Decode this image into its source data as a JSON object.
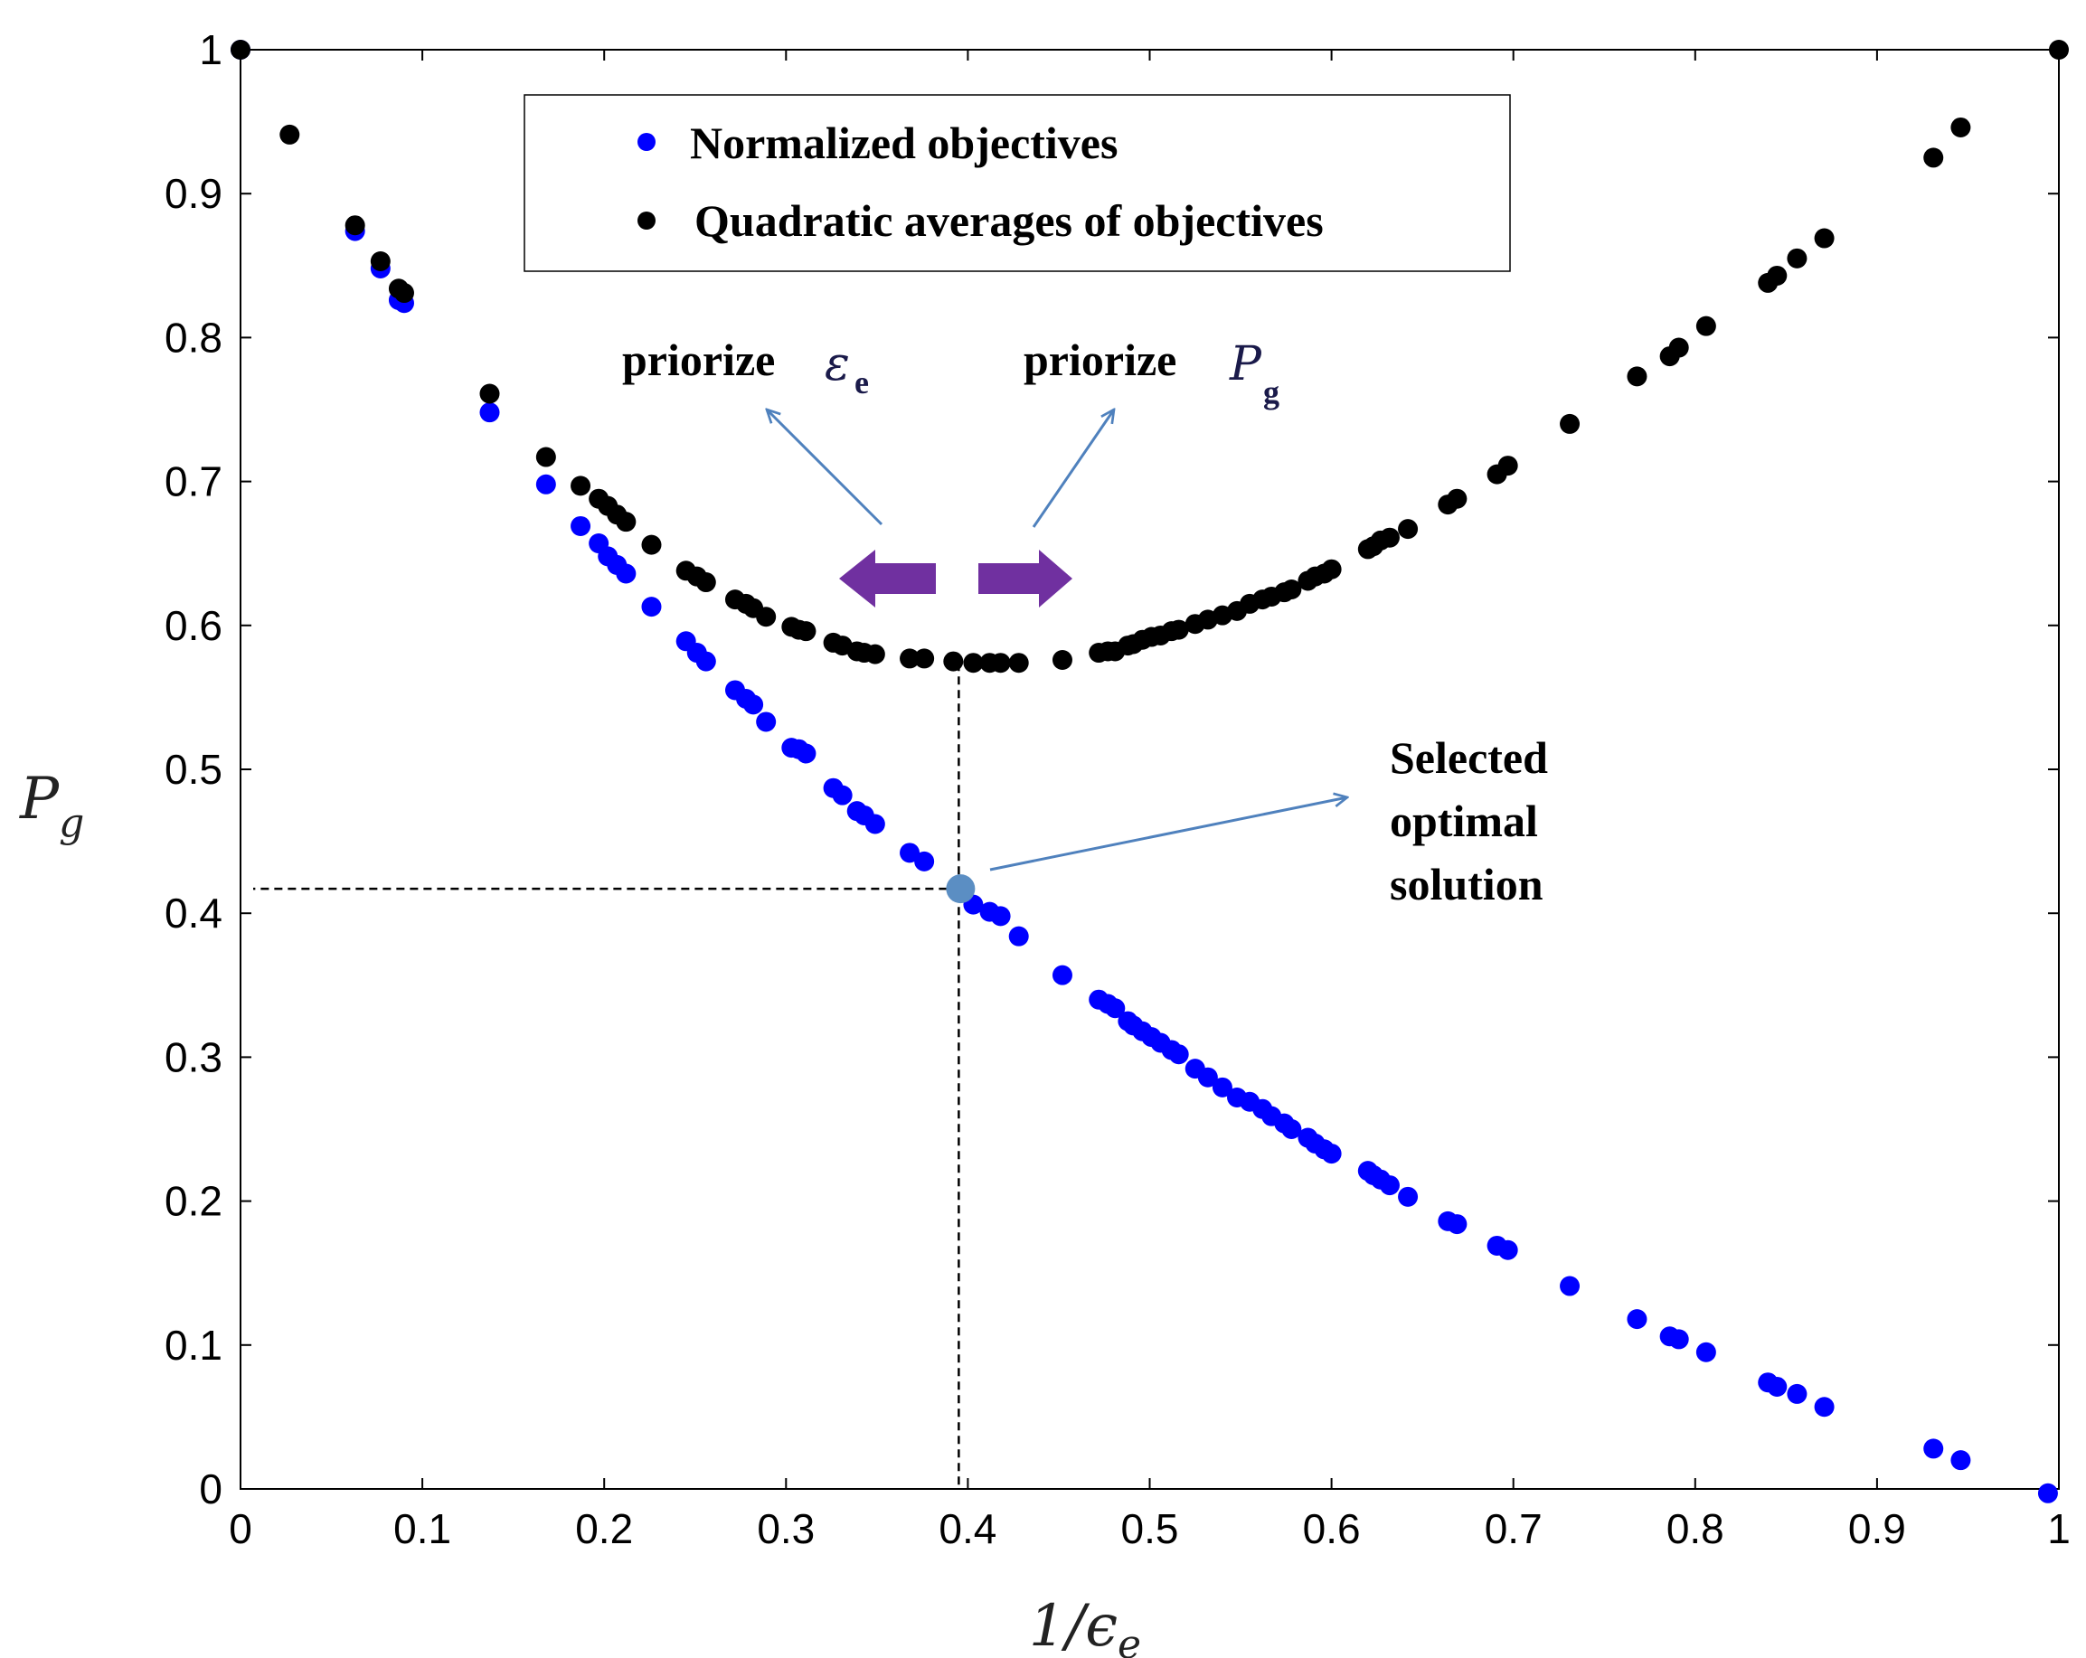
{
  "chart_data": {
    "type": "scatter",
    "title": "",
    "xlabel": "1/ϵ",
    "xlabel_sub": "e",
    "ylabel": "P",
    "ylabel_sub": "g",
    "xlim": [
      0,
      1
    ],
    "ylim": [
      0,
      1
    ],
    "x_ticks": [
      "0",
      "0.1",
      "0.2",
      "0.3",
      "0.4",
      "0.5",
      "0.6",
      "0.7",
      "0.8",
      "0.9",
      "1"
    ],
    "y_ticks": [
      "0",
      "0.1",
      "0.2",
      "0.3",
      "0.4",
      "0.5",
      "0.6",
      "0.7",
      "0.8",
      "0.9",
      "1"
    ],
    "grid": false,
    "legend_position": "top-center",
    "series": [
      {
        "name": "Normalized objectives",
        "color": "#0000ff",
        "x": [
          0,
          0.063,
          0.077,
          0.087,
          0.09,
          0.137,
          0.168,
          0.187,
          0.197,
          0.202,
          0.207,
          0.212,
          0.226,
          0.245,
          0.251,
          0.256,
          0.272,
          0.278,
          0.282,
          0.289,
          0.303,
          0.307,
          0.311,
          0.326,
          0.331,
          0.339,
          0.343,
          0.349,
          0.368,
          0.376,
          0.403,
          0.412,
          0.418,
          0.428,
          0.452,
          0.472,
          0.477,
          0.481,
          0.488,
          0.491,
          0.496,
          0.501,
          0.506,
          0.512,
          0.516,
          0.525,
          0.532,
          0.54,
          0.548,
          0.555,
          0.562,
          0.567,
          0.574,
          0.578,
          0.587,
          0.591,
          0.596,
          0.6,
          0.62,
          0.623,
          0.627,
          0.632,
          0.642,
          0.664,
          0.669,
          0.691,
          0.697,
          0.731,
          0.768,
          0.786,
          0.791,
          0.806,
          0.84,
          0.845,
          0.856,
          0.871,
          0.931,
          0.946,
          0.994
        ],
        "y": [
          1,
          0.874,
          0.848,
          0.826,
          0.824,
          0.748,
          0.698,
          0.669,
          0.657,
          0.648,
          0.642,
          0.636,
          0.613,
          0.589,
          0.581,
          0.575,
          0.555,
          0.549,
          0.545,
          0.533,
          0.515,
          0.514,
          0.511,
          0.487,
          0.482,
          0.471,
          0.468,
          0.462,
          0.442,
          0.436,
          0.406,
          0.401,
          0.398,
          0.384,
          0.357,
          0.34,
          0.337,
          0.334,
          0.325,
          0.322,
          0.318,
          0.314,
          0.31,
          0.305,
          0.302,
          0.292,
          0.286,
          0.279,
          0.272,
          0.269,
          0.264,
          0.259,
          0.254,
          0.25,
          0.244,
          0.24,
          0.236,
          0.233,
          0.221,
          0.218,
          0.215,
          0.211,
          0.203,
          0.186,
          0.184,
          0.169,
          0.166,
          0.141,
          0.118,
          0.106,
          0.104,
          0.095,
          0.074,
          0.071,
          0.066,
          0.057,
          0.028,
          0.02,
          -0.003
        ]
      },
      {
        "name": "Quadratic averages of objectives",
        "color": "#000000",
        "x": [
          0,
          0.027,
          0.063,
          0.077,
          0.087,
          0.09,
          0.137,
          0.168,
          0.187,
          0.197,
          0.202,
          0.207,
          0.212,
          0.226,
          0.245,
          0.251,
          0.256,
          0.272,
          0.278,
          0.282,
          0.289,
          0.303,
          0.307,
          0.311,
          0.326,
          0.331,
          0.339,
          0.343,
          0.349,
          0.368,
          0.376,
          0.392,
          0.403,
          0.412,
          0.418,
          0.428,
          0.452,
          0.472,
          0.477,
          0.481,
          0.488,
          0.491,
          0.496,
          0.501,
          0.506,
          0.512,
          0.516,
          0.525,
          0.532,
          0.54,
          0.548,
          0.555,
          0.562,
          0.567,
          0.574,
          0.578,
          0.587,
          0.591,
          0.596,
          0.6,
          0.62,
          0.623,
          0.627,
          0.632,
          0.642,
          0.664,
          0.669,
          0.691,
          0.697,
          0.731,
          0.768,
          0.786,
          0.791,
          0.806,
          0.84,
          0.845,
          0.856,
          0.871,
          0.931,
          0.946,
          1
        ],
        "y": [
          1,
          0.941,
          0.878,
          0.853,
          0.834,
          0.831,
          0.761,
          0.717,
          0.697,
          0.688,
          0.683,
          0.677,
          0.672,
          0.656,
          0.638,
          0.634,
          0.63,
          0.618,
          0.615,
          0.612,
          0.606,
          0.599,
          0.597,
          0.596,
          0.588,
          0.586,
          0.582,
          0.581,
          0.58,
          0.577,
          0.577,
          0.575,
          0.574,
          0.574,
          0.574,
          0.574,
          0.576,
          0.581,
          0.582,
          0.582,
          0.586,
          0.587,
          0.59,
          0.592,
          0.593,
          0.596,
          0.597,
          0.601,
          0.604,
          0.607,
          0.61,
          0.615,
          0.618,
          0.62,
          0.623,
          0.625,
          0.631,
          0.634,
          0.636,
          0.639,
          0.653,
          0.655,
          0.659,
          0.661,
          0.667,
          0.684,
          0.688,
          0.705,
          0.711,
          0.74,
          0.773,
          0.787,
          0.793,
          0.808,
          0.838,
          0.843,
          0.855,
          0.869,
          0.925,
          0.946,
          1
        ]
      }
    ],
    "selected_point": {
      "x": 0.396,
      "y": 0.417,
      "label": "Selected optimal solution"
    },
    "annotations": {
      "left": {
        "text": "priorize",
        "symbol": "ε",
        "sub": "e"
      },
      "right": {
        "text": "priorize",
        "symbol": "P",
        "sub": "g"
      },
      "selected_lines": [
        "Selected",
        "optimal",
        "solution"
      ]
    }
  },
  "colors": {
    "selected": "#5b8ec3",
    "arrow_line": "#4f81bd",
    "block_arrow": "#7030a0"
  }
}
